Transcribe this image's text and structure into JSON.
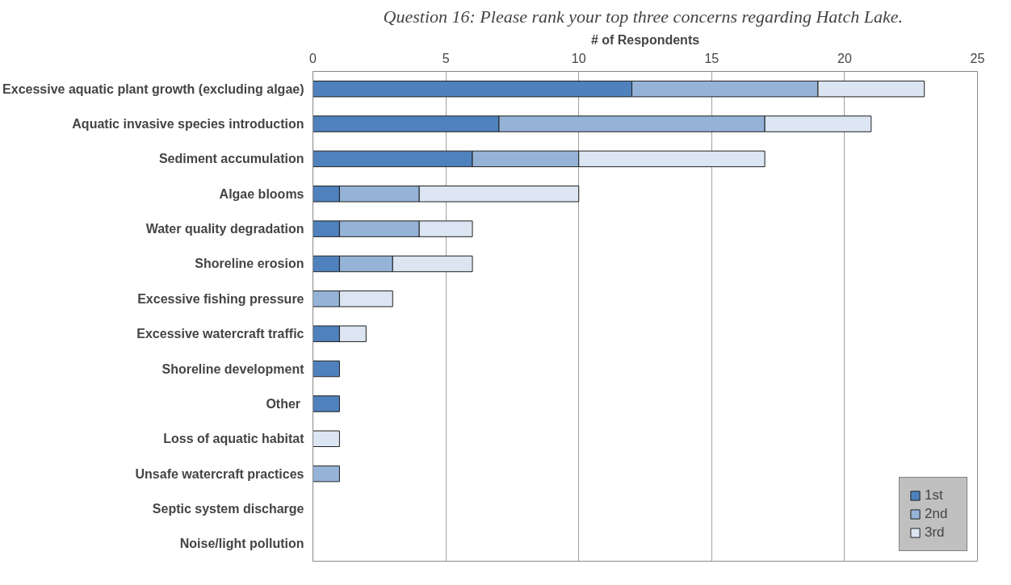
{
  "chart_data": {
    "type": "bar",
    "orientation": "horizontal",
    "stacked": true,
    "title": "Question 16:  Please rank your top three concerns regarding Hatch Lake.",
    "xlabel": "# of Respondents",
    "categories": [
      "Excessive aquatic plant growth (excluding algae)",
      "Aquatic invasive species introduction",
      "Sediment accumulation",
      "Algae blooms",
      "Water quality degradation",
      "Shoreline erosion",
      "Excessive fishing pressure",
      "Excessive watercraft traffic",
      "Shoreline development",
      "Other ",
      "Loss of aquatic habitat",
      "Unsafe watercraft practices",
      "Septic system discharge",
      "Noise/light pollution"
    ],
    "series": [
      {
        "name": "1st",
        "color": "#4f81bd",
        "values": [
          12,
          7,
          6,
          1,
          1,
          1,
          0,
          1,
          1,
          1,
          0,
          0,
          0,
          0
        ]
      },
      {
        "name": "2nd",
        "color": "#95b3d7",
        "values": [
          7,
          10,
          4,
          3,
          3,
          2,
          1,
          0,
          0,
          0,
          0,
          1,
          0,
          0
        ]
      },
      {
        "name": "3rd",
        "color": "#dce6f2",
        "values": [
          4,
          4,
          7,
          6,
          2,
          3,
          2,
          1,
          0,
          0,
          1,
          0,
          0,
          0
        ]
      }
    ],
    "xlim": [
      0,
      25
    ],
    "xticks": [
      0,
      5,
      10,
      15,
      20,
      25
    ],
    "grid": "x",
    "legend": "bottom right"
  }
}
